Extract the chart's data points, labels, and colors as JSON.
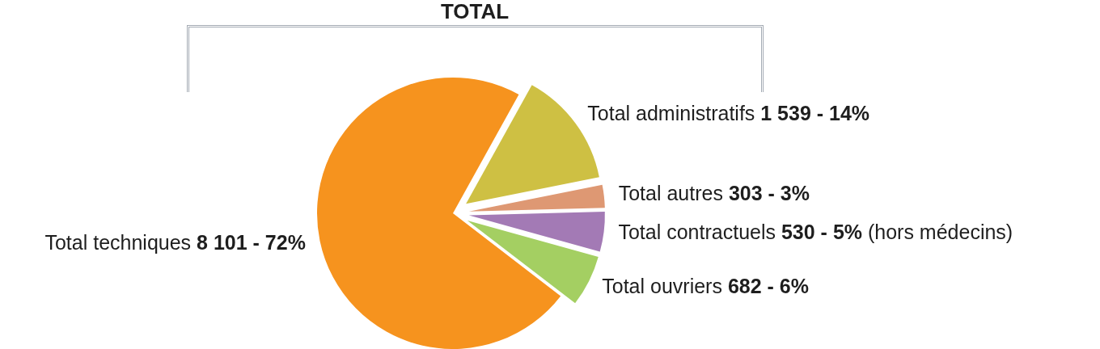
{
  "chart_data": {
    "type": "pie",
    "title": "TOTAL",
    "categories": [
      "Total administratifs",
      "Total autres",
      "Total contractuels",
      "Total ouvriers",
      "Total techniques"
    ],
    "values": [
      1539,
      303,
      530,
      682,
      8101
    ],
    "colors": [
      "#cec043",
      "#de9873",
      "#a37ab5",
      "#a4cf62",
      "#f6931e"
    ],
    "value_labels": [
      "1 539 - 14%",
      "303 - 3%",
      "530 - 5% (hors médecins)",
      "682 - 6%",
      "8 101 - 72%"
    ]
  }
}
